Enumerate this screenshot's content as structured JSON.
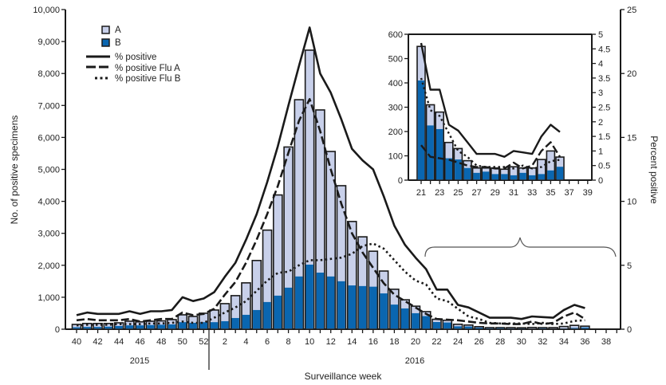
{
  "chart_data": [
    {
      "type": "bar",
      "stacked": true,
      "xlabel": "Surveillance week",
      "ylabel_left": "No. of positive specimens",
      "ylabel_right": "Percent positive",
      "ylim_left": [
        0,
        10000
      ],
      "ylim_right": [
        0,
        25
      ],
      "yticks_left": [
        "0",
        "1,000",
        "2,000",
        "3,000",
        "4,000",
        "5,000",
        "6,000",
        "7,000",
        "8,000",
        "9,000",
        "10,000"
      ],
      "yticks_right": [
        "0",
        "5",
        "10",
        "15",
        "20",
        "25"
      ],
      "year_labels": [
        "2015",
        "2016"
      ],
      "legend_placement": "top-left",
      "colors": {
        "A": "#c8d0ea",
        "B": "#0a66b0",
        "outline": "#1a1a1a"
      },
      "weeks": [
        40,
        41,
        42,
        43,
        44,
        45,
        46,
        47,
        48,
        49,
        50,
        51,
        52,
        1,
        2,
        3,
        4,
        5,
        6,
        7,
        8,
        9,
        10,
        11,
        12,
        13,
        14,
        15,
        16,
        17,
        18,
        19,
        20,
        21,
        22,
        23,
        24,
        25,
        26,
        27,
        28,
        29,
        30,
        31,
        32,
        33,
        34,
        35,
        36,
        37,
        38,
        39
      ],
      "tick_labels": [
        "40",
        "42",
        "44",
        "46",
        "48",
        "50",
        "52",
        "2",
        "4",
        "6",
        "8",
        "10",
        "12",
        "14",
        "16",
        "18",
        "20",
        "22",
        "24",
        "26",
        "28",
        "30",
        "32",
        "34",
        "36",
        "38"
      ],
      "series": [
        {
          "name": "A",
          "kind": "bar",
          "values": [
            90,
            110,
            110,
            100,
            100,
            130,
            110,
            120,
            120,
            150,
            230,
            200,
            280,
            380,
            550,
            700,
            1000,
            1550,
            2250,
            3150,
            4400,
            5530,
            6710,
            5090,
            3910,
            2990,
            2000,
            1540,
            1110,
            700,
            480,
            270,
            220,
            140,
            85,
            70,
            65,
            45,
            30,
            20,
            15,
            25,
            20,
            35,
            20,
            30,
            60,
            80,
            40,
            null,
            null,
            null
          ]
        },
        {
          "name": "B",
          "kind": "bar",
          "values": [
            60,
            70,
            70,
            80,
            100,
            120,
            120,
            130,
            140,
            150,
            220,
            200,
            220,
            220,
            250,
            350,
            450,
            600,
            850,
            1050,
            1300,
            1650,
            2020,
            1770,
            1650,
            1500,
            1370,
            1350,
            1330,
            1120,
            770,
            650,
            500,
            410,
            225,
            210,
            90,
            85,
            50,
            30,
            35,
            25,
            25,
            20,
            30,
            20,
            25,
            40,
            55,
            null,
            null,
            null
          ]
        },
        {
          "name": "% positive",
          "kind": "line",
          "style": "solid",
          "values": [
            1.1,
            1.3,
            1.2,
            1.2,
            1.2,
            1.4,
            1.2,
            1.4,
            1.4,
            1.5,
            2.5,
            2.2,
            2.4,
            2.9,
            4.1,
            5.2,
            7.0,
            9.0,
            11.5,
            14.3,
            17.5,
            20.6,
            23.6,
            20.0,
            18.5,
            16.4,
            14.1,
            13.2,
            12.5,
            10.4,
            8.1,
            6.6,
            5.6,
            4.7,
            3.1,
            3.1,
            1.9,
            1.7,
            1.3,
            0.9,
            0.9,
            0.9,
            0.8,
            1.0,
            0.95,
            0.9,
            1.5,
            1.9,
            1.65,
            null,
            null,
            null
          ]
        },
        {
          "name": "% positive Flu A",
          "kind": "line",
          "style": "dashed",
          "values": [
            0.7,
            0.8,
            0.7,
            0.7,
            0.7,
            0.8,
            0.6,
            0.7,
            0.8,
            0.8,
            1.3,
            1.1,
            1.2,
            1.6,
            2.7,
            3.7,
            5.2,
            7.0,
            9.0,
            11.2,
            13.8,
            16.3,
            18.0,
            15.5,
            12.5,
            9.8,
            7.5,
            6.0,
            4.8,
            3.6,
            2.7,
            2.2,
            1.7,
            1.2,
            0.8,
            0.75,
            0.7,
            0.6,
            0.5,
            0.45,
            0.45,
            0.4,
            0.4,
            0.6,
            0.4,
            0.5,
            1.0,
            1.3,
            0.8,
            null,
            null,
            null
          ]
        },
        {
          "name": "% positive Flu B",
          "kind": "line",
          "style": "dotted",
          "values": [
            0.3,
            0.35,
            0.35,
            0.35,
            0.4,
            0.4,
            0.4,
            0.45,
            0.45,
            0.5,
            0.6,
            0.5,
            0.5,
            0.9,
            1.3,
            1.7,
            2.2,
            3.0,
            3.8,
            4.4,
            4.5,
            5.0,
            5.4,
            5.4,
            5.5,
            5.6,
            5.9,
            6.5,
            6.7,
            6.3,
            5.4,
            4.5,
            3.8,
            3.5,
            2.4,
            2.2,
            1.6,
            1.0,
            0.8,
            0.5,
            0.45,
            0.45,
            0.45,
            0.4,
            0.5,
            0.4,
            0.45,
            0.65,
            0.7,
            null,
            null,
            null
          ]
        }
      ]
    },
    {
      "type": "bar",
      "stacked": true,
      "inset_of": "weeks 21-39",
      "ylim_left": [
        0,
        600
      ],
      "ylim_right": [
        0,
        5
      ],
      "yticks_left": [
        "0",
        "100",
        "200",
        "300",
        "400",
        "500",
        "600"
      ],
      "yticks_right": [
        "0",
        "0.5",
        "1",
        "1.5",
        "2",
        "2.5",
        "3",
        "3.5",
        "4",
        "4.5",
        "5"
      ],
      "weeks": [
        21,
        22,
        23,
        24,
        25,
        26,
        27,
        28,
        29,
        30,
        31,
        32,
        33,
        34,
        35,
        36,
        37,
        38,
        39
      ],
      "tick_labels": [
        "21",
        "23",
        "25",
        "27",
        "29",
        "31",
        "33",
        "35",
        "37",
        "39"
      ]
    }
  ],
  "legend": {
    "A": "A",
    "B": "B",
    "pos": "% positive",
    "posA": "% positive Flu A",
    "posB": "% positive Flu B"
  }
}
